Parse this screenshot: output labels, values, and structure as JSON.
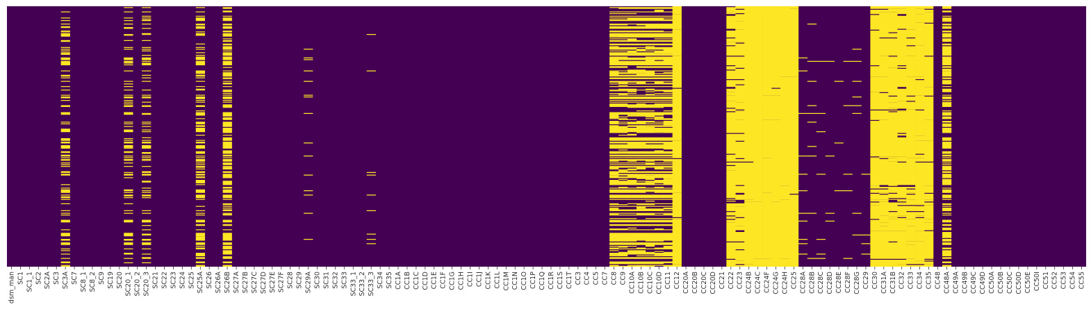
{
  "colors": {
    "missing": "#fde725",
    "present": "#440154"
  },
  "chart_data": {
    "type": "heatmap",
    "colormap": "viridis",
    "colorbar": false,
    "title": "",
    "xlabel": "",
    "ylabel": "",
    "y_tick_labels": false,
    "columns": [
      "dsm_man",
      "SC1",
      "SC1_1",
      "SC2",
      "SC2A",
      "SC3",
      "SC3A",
      "SC7",
      "SC8_1",
      "SC8_2",
      "SC9",
      "SC19",
      "SC20",
      "SC20_1",
      "SC20_2",
      "SC20_3",
      "SC21",
      "SC22",
      "SC23",
      "SC24",
      "SC25",
      "SC25A",
      "SC26",
      "SC26A",
      "SC26B",
      "SC27A",
      "SC27B",
      "SC27C",
      "SC27D",
      "SC27E",
      "SC27F",
      "SC28",
      "SC29",
      "SC29A",
      "SC30",
      "SC31",
      "SC32",
      "SC33",
      "SC33_1",
      "SC33_2",
      "SC33_3",
      "SC34",
      "SC35",
      "CC1A",
      "CC1B",
      "CC1C",
      "CC1D",
      "CC1E",
      "CC1F",
      "CC1G",
      "CC1H",
      "CC1I",
      "CC1J",
      "CC1K",
      "CC1L",
      "CC1M",
      "CC1N",
      "CC1O",
      "CC1P",
      "CC1Q",
      "CC1R",
      "CC1S",
      "CC1T",
      "CC3",
      "CC4",
      "CC5",
      "CC7",
      "CC8",
      "CC9",
      "CC10A",
      "CC10B",
      "CC10C",
      "CC10D",
      "CC11",
      "CC12",
      "CC20A",
      "CC20B",
      "CC20C",
      "CC20D",
      "CC21",
      "CC22",
      "CC23",
      "CC24B",
      "CC24C",
      "CC24F",
      "CC24G",
      "CC24H",
      "CC25",
      "CC28A",
      "CC28B",
      "CC28C",
      "CC28D",
      "CC28E",
      "CC28F",
      "CC28G",
      "CC29",
      "CC30",
      "CC31A",
      "CC31B",
      "CC32",
      "CC33",
      "CC34",
      "CC35",
      "CC48",
      "CC48A",
      "CC49A",
      "CC49B",
      "CC49C",
      "CC49D",
      "CC50A",
      "CC50B",
      "CC50C",
      "CC50D",
      "CC50E",
      "CC50I",
      "CC51",
      "CC52",
      "CC53",
      "CC54",
      "CC55"
    ],
    "missing_fraction": {
      "SC3A": 0.4,
      "SC20_1": 0.35,
      "SC20_3": 0.35,
      "SC25A": 0.45,
      "SC26B": 0.55,
      "SC29A": 0.15,
      "SC33_3": 0.15,
      "CC8": 0.55,
      "CC9": 0.55,
      "CC10A": 0.55,
      "CC10B": 0.55,
      "CC10C": 0.55,
      "CC10D": 0.55,
      "CC11": 0.55,
      "CC12": 0.85,
      "CC22": 0.75,
      "CC23": 0.75,
      "CC24B": 0.92,
      "CC24C": 0.92,
      "CC24F": 0.92,
      "CC24G": 0.92,
      "CC24H": 0.92,
      "CC25": 0.92,
      "CC28A": 0.1,
      "CC28B": 0.1,
      "CC28C": 0.1,
      "CC28D": 0.1,
      "CC28E": 0.1,
      "CC28F": 0.1,
      "CC28G": 0.1,
      "CC29": 0.1,
      "CC30": 0.8,
      "CC31A": 0.8,
      "CC31B": 0.8,
      "CC32": 0.8,
      "CC33": 0.8,
      "CC34": 0.8,
      "CC35": 0.8,
      "CC48A": 0.6
    }
  }
}
